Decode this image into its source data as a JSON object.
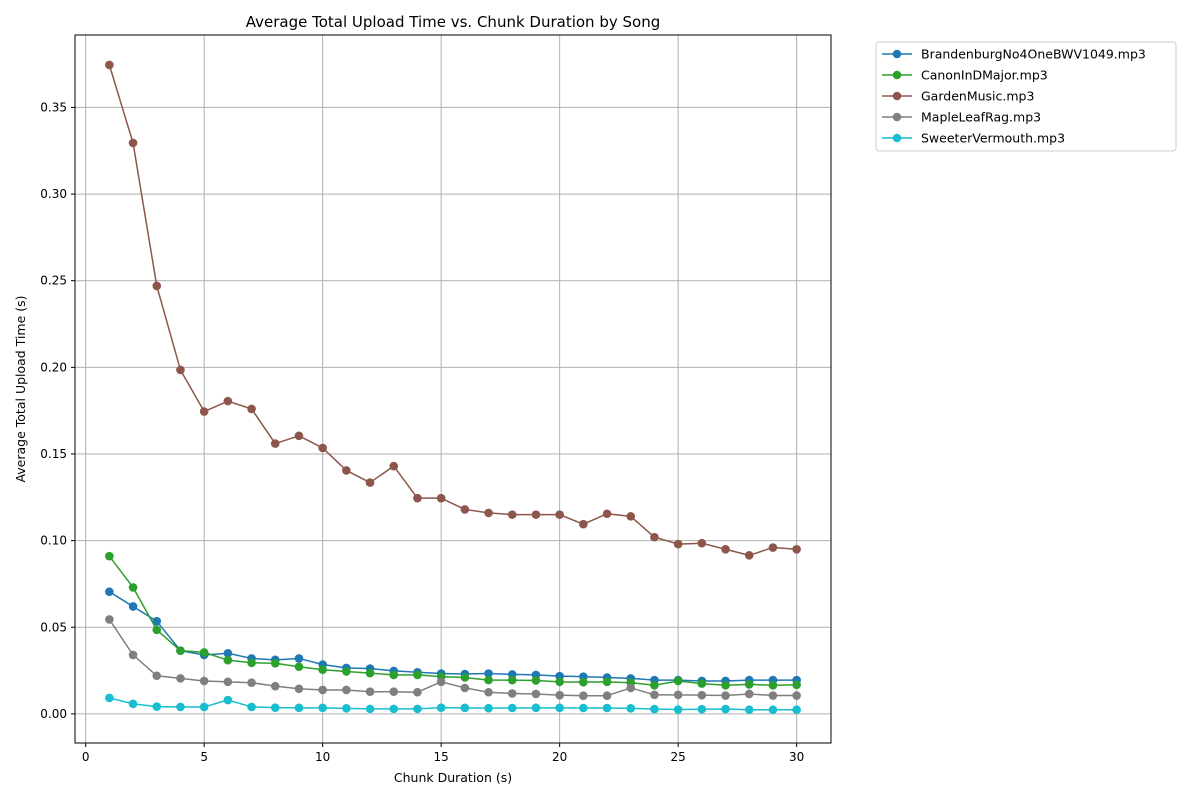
{
  "chart_data": {
    "type": "line",
    "title": "Average Total Upload Time vs. Chunk Duration by Song",
    "xlabel": "Chunk Duration (s)",
    "ylabel": "Average Total Upload Time (s)",
    "xlim": [
      -0.45,
      31.45
    ],
    "ylim": [
      -0.0168,
      0.3918
    ],
    "xticks": [
      0,
      5,
      10,
      15,
      20,
      25,
      30
    ],
    "yticks": [
      0.0,
      0.05,
      0.1,
      0.15,
      0.2,
      0.25,
      0.3,
      0.35
    ],
    "ytick_labels": [
      "0.00",
      "0.05",
      "0.10",
      "0.15",
      "0.20",
      "0.25",
      "0.30",
      "0.35"
    ],
    "grid": true,
    "legend_position": "outside-top-right",
    "x": [
      1,
      2,
      3,
      4,
      5,
      6,
      7,
      8,
      9,
      10,
      11,
      12,
      13,
      14,
      15,
      16,
      17,
      18,
      19,
      20,
      21,
      22,
      23,
      24,
      25,
      26,
      27,
      28,
      29,
      30
    ],
    "series": [
      {
        "name": "BrandenburgNo4OneBWV1049.mp3",
        "color": "#1f77b4",
        "values": [
          0.0705,
          0.062,
          0.0535,
          0.0365,
          0.034,
          0.035,
          0.032,
          0.0312,
          0.032,
          0.0285,
          0.0265,
          0.0262,
          0.0248,
          0.024,
          0.0233,
          0.023,
          0.0233,
          0.0228,
          0.0225,
          0.0218,
          0.0215,
          0.021,
          0.0205,
          0.0195,
          0.0195,
          0.019,
          0.019,
          0.0195,
          0.0195,
          0.0195
        ]
      },
      {
        "name": "CanonInDMajor.mp3",
        "color": "#2ca02c",
        "values": [
          0.091,
          0.073,
          0.0485,
          0.0365,
          0.0355,
          0.031,
          0.0295,
          0.0292,
          0.0272,
          0.0255,
          0.0245,
          0.0235,
          0.0225,
          0.0225,
          0.0215,
          0.021,
          0.0195,
          0.0195,
          0.0193,
          0.0185,
          0.0183,
          0.0185,
          0.018,
          0.0165,
          0.019,
          0.0175,
          0.0165,
          0.017,
          0.0165,
          0.0168
        ]
      },
      {
        "name": "GardenMusic.mp3",
        "color": "#8c564b",
        "values": [
          0.3745,
          0.3295,
          0.247,
          0.1985,
          0.1745,
          0.1805,
          0.176,
          0.156,
          0.1605,
          0.1535,
          0.1405,
          0.1335,
          0.143,
          0.1245,
          0.1245,
          0.118,
          0.116,
          0.115,
          0.115,
          0.115,
          0.1095,
          0.1155,
          0.114,
          0.102,
          0.098,
          0.0985,
          0.095,
          0.0915,
          0.096,
          0.095
        ]
      },
      {
        "name": "MapleLeafRag.mp3",
        "color": "#7f7f7f",
        "values": [
          0.0545,
          0.034,
          0.022,
          0.0205,
          0.019,
          0.0185,
          0.018,
          0.016,
          0.0145,
          0.0138,
          0.0138,
          0.0128,
          0.0128,
          0.0125,
          0.0185,
          0.015,
          0.0125,
          0.0118,
          0.0115,
          0.0108,
          0.0105,
          0.0105,
          0.015,
          0.011,
          0.011,
          0.0108,
          0.0106,
          0.0115,
          0.0106,
          0.0106
        ]
      },
      {
        "name": "SweeterVermouth.mp3",
        "color": "#17becf",
        "values": [
          0.0092,
          0.0058,
          0.0042,
          0.004,
          0.004,
          0.008,
          0.004,
          0.0036,
          0.0035,
          0.0035,
          0.0032,
          0.0029,
          0.0029,
          0.0029,
          0.0036,
          0.0035,
          0.0033,
          0.0034,
          0.0035,
          0.0035,
          0.0034,
          0.0034,
          0.0032,
          0.0028,
          0.0025,
          0.0027,
          0.0028,
          0.0024,
          0.0024,
          0.0024
        ]
      }
    ]
  }
}
